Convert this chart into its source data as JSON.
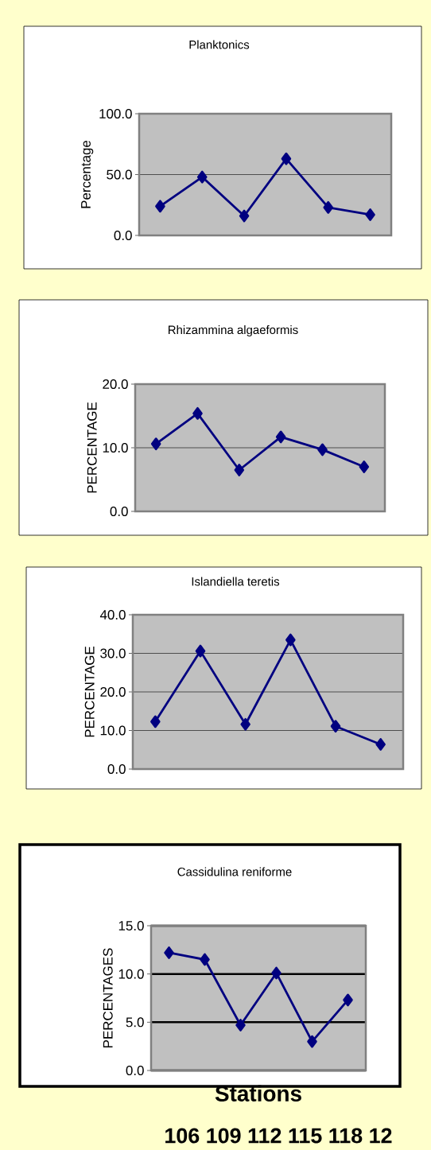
{
  "chart_data": [
    {
      "type": "line",
      "title": "Planktonics",
      "ylabel": "Percentage",
      "categories": [
        null,
        null,
        null,
        null,
        null,
        null
      ],
      "values": [
        24,
        48,
        16,
        63,
        23,
        17
      ],
      "color": "#000080",
      "ylim": [
        0,
        100
      ],
      "yticks": [
        {
          "value": 0,
          "label": "0.0"
        },
        {
          "value": 50,
          "label": "50.0"
        },
        {
          "value": 100,
          "label": "100.0"
        }
      ],
      "grid": "y",
      "marker": "diamond",
      "tick_labels": "y"
    },
    {
      "type": "line",
      "title": "Rhizammina algaeformis",
      "ylabel": "PERCENTAGE",
      "categories": [
        null,
        null,
        null,
        null,
        null,
        null
      ],
      "values": [
        10.6,
        15.4,
        6.5,
        11.7,
        9.7,
        7.0
      ],
      "color": "#000080",
      "ylim": [
        0,
        20
      ],
      "yticks": [
        {
          "value": 0,
          "label": "0.0"
        },
        {
          "value": 10,
          "label": "10.0"
        },
        {
          "value": 20,
          "label": "20.0"
        }
      ],
      "grid": "y",
      "marker": "diamond",
      "tick_labels": "y"
    },
    {
      "type": "line",
      "title": "Islandiella teretis",
      "ylabel": "PERCENTAGE",
      "categories": [
        null,
        null,
        null,
        null,
        null,
        null
      ],
      "values": [
        12.3,
        30.6,
        11.6,
        33.5,
        11.1,
        6.4
      ],
      "color": "#000080",
      "ylim": [
        0,
        40
      ],
      "yticks": [
        {
          "value": 0,
          "label": "0.0"
        },
        {
          "value": 10,
          "label": "10.0"
        },
        {
          "value": 20,
          "label": "20.0"
        },
        {
          "value": 30,
          "label": "30.0"
        },
        {
          "value": 40,
          "label": "40.0"
        }
      ],
      "grid": "y",
      "marker": "diamond",
      "tick_labels": "y"
    },
    {
      "type": "line",
      "title": "Cassidulina reniforme",
      "ylabel": "PERCENTAGES",
      "xlabel": "Stations",
      "annotations": [
        "106 109 112 115 118 12"
      ],
      "categories": [
        null,
        null,
        null,
        null,
        null,
        null
      ],
      "values": [
        12.2,
        11.5,
        4.7,
        10.1,
        3.0,
        7.3
      ],
      "color": "#000080",
      "ylim": [
        0,
        15
      ],
      "yticks": [
        {
          "value": 0,
          "label": "0.0"
        },
        {
          "value": 5,
          "label": "5.0"
        },
        {
          "value": 10,
          "label": "10.0"
        },
        {
          "value": 15,
          "label": "15.0"
        }
      ],
      "grid": "y",
      "marker": "diamond",
      "tick_labels": "y"
    }
  ]
}
